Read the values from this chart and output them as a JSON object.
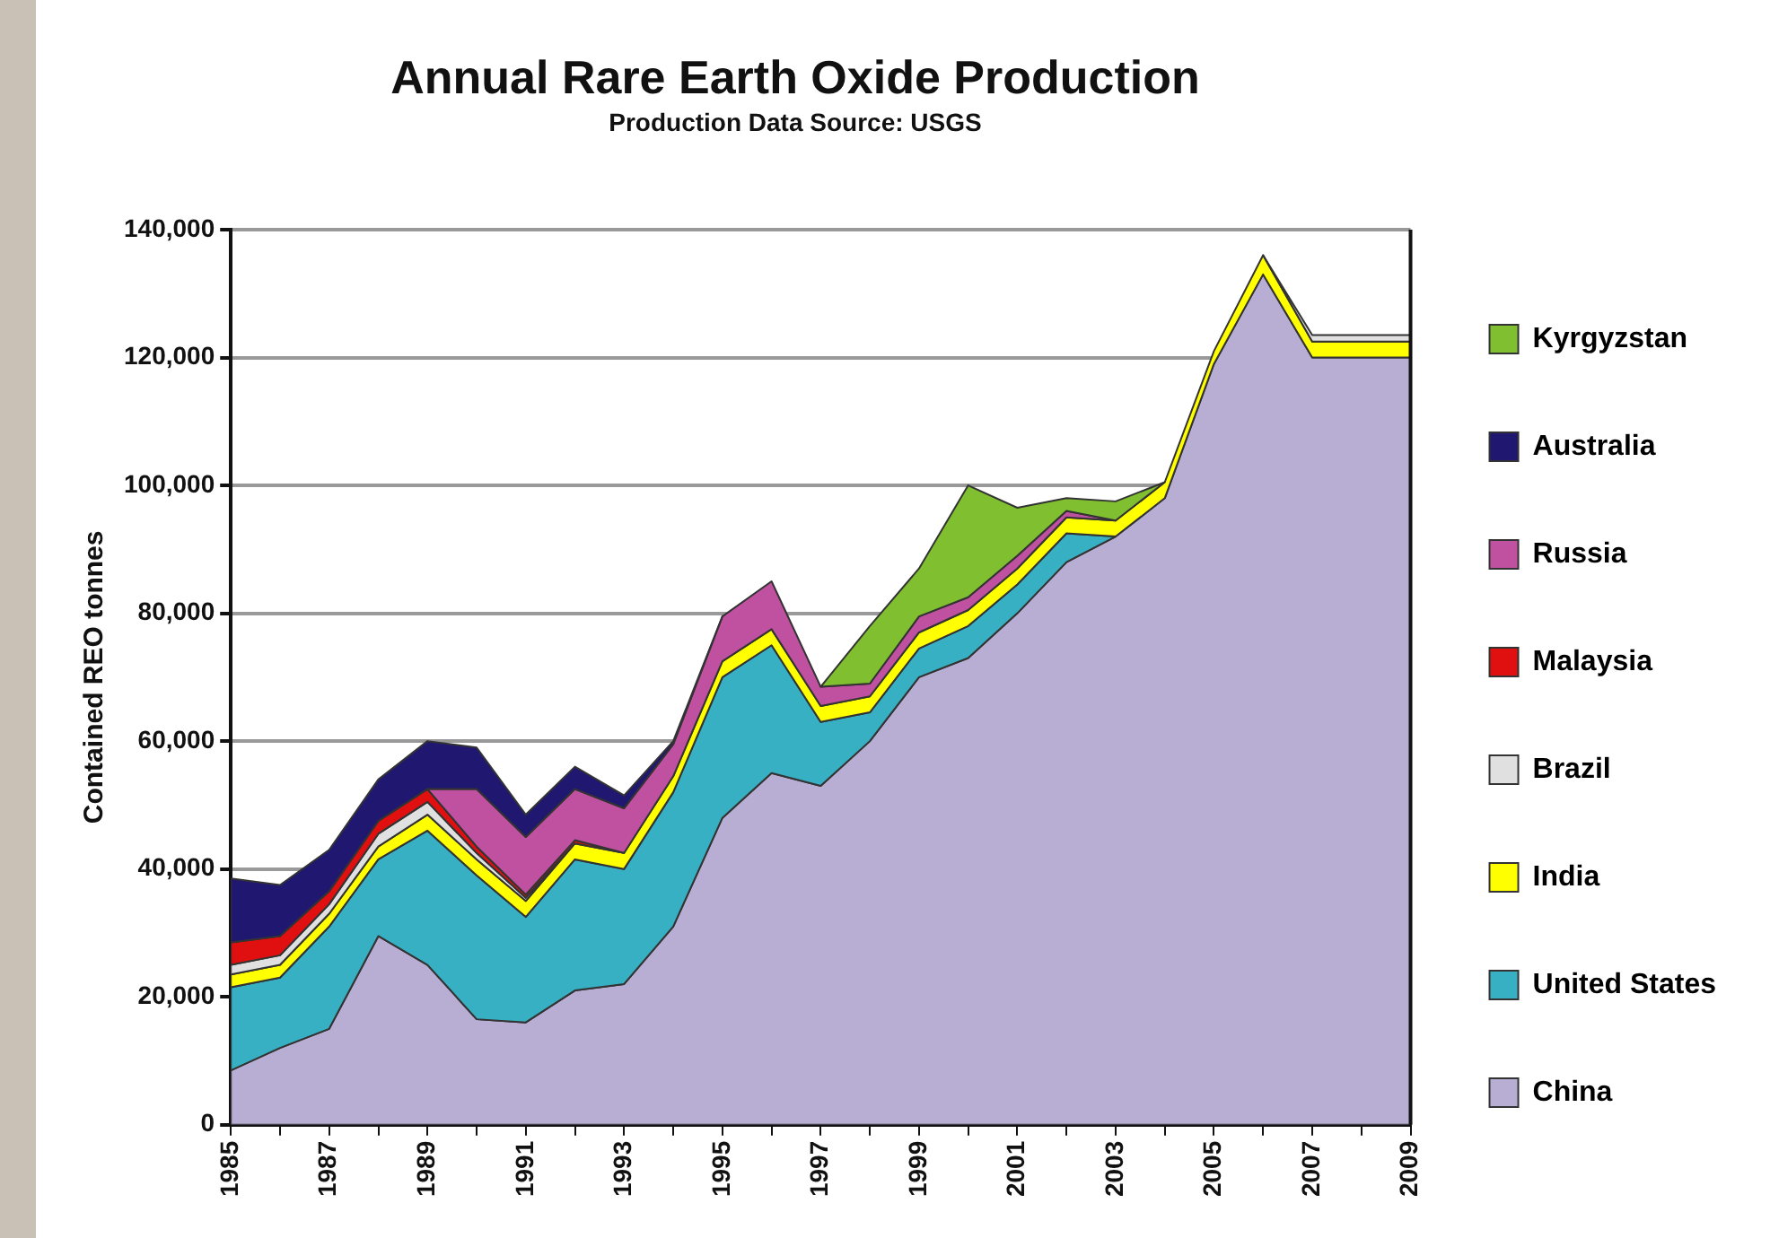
{
  "chart_data": {
    "type": "area",
    "title": "Annual Rare Earth Oxide Production",
    "subtitle": "Production Data Source:  USGS",
    "ylabel": "Contained REO tonnes",
    "stacked": true,
    "x": [
      1985,
      1986,
      1987,
      1988,
      1989,
      1990,
      1991,
      1992,
      1993,
      1994,
      1995,
      1996,
      1997,
      1998,
      1999,
      2000,
      2001,
      2002,
      2003,
      2004,
      2005,
      2006,
      2007,
      2008,
      2009
    ],
    "series": [
      {
        "name": "China",
        "color": "#b8aed4",
        "values": [
          8500,
          12000,
          15000,
          29500,
          25000,
          16500,
          16000,
          21000,
          22000,
          31000,
          48000,
          55000,
          53000,
          60000,
          70000,
          73000,
          80000,
          88000,
          92000,
          98000,
          119000,
          133000,
          120000,
          120000,
          120000
        ]
      },
      {
        "name": "United States",
        "color": "#38b0c4",
        "values": [
          13000,
          11000,
          16000,
          12000,
          21000,
          22500,
          16500,
          20500,
          18000,
          21000,
          22000,
          20000,
          10000,
          4500,
          4500,
          5000,
          4500,
          4500,
          0,
          null,
          null,
          null,
          null,
          null,
          null
        ]
      },
      {
        "name": "India",
        "color": "#ffff00",
        "values": [
          2000,
          2000,
          2000,
          2000,
          2500,
          2500,
          2500,
          2500,
          2500,
          2500,
          2500,
          2500,
          2500,
          2500,
          2500,
          2500,
          2500,
          2500,
          2500,
          2500,
          2000,
          3000,
          2500,
          2500,
          2500
        ]
      },
      {
        "name": "Brazil",
        "color": "#e0e0e0",
        "values": [
          1500,
          1500,
          1500,
          2000,
          2000,
          1000,
          500,
          0,
          null,
          null,
          null,
          null,
          null,
          null,
          null,
          null,
          null,
          null,
          null,
          null,
          null,
          0,
          1000,
          1000,
          1000
        ]
      },
      {
        "name": "Malaysia",
        "color": "#e01010",
        "values": [
          3500,
          3000,
          2000,
          2000,
          2000,
          1000,
          500,
          500,
          0,
          null,
          null,
          null,
          null,
          null,
          null,
          null,
          null,
          null,
          null,
          null,
          null,
          null,
          null,
          null,
          null
        ]
      },
      {
        "name": "Russia",
        "color": "#c050a0",
        "values": [
          null,
          null,
          null,
          null,
          0,
          9000,
          9000,
          8000,
          7000,
          5000,
          7000,
          7500,
          3000,
          2000,
          2500,
          2000,
          2000,
          1000,
          0,
          null,
          null,
          null,
          null,
          null,
          null
        ]
      },
      {
        "name": "Australia",
        "color": "#201870",
        "values": [
          10000,
          8000,
          6500,
          6500,
          7500,
          6500,
          3500,
          3500,
          2000,
          500,
          0,
          null,
          null,
          null,
          null,
          null,
          null,
          null,
          null,
          null,
          null,
          null,
          null,
          null,
          null
        ]
      },
      {
        "name": "Kyrgyzstan",
        "color": "#80c030",
        "values": [
          null,
          null,
          null,
          null,
          null,
          null,
          null,
          null,
          null,
          null,
          null,
          null,
          0,
          9000,
          7500,
          17500,
          7500,
          2000,
          3000,
          0,
          null,
          null,
          null,
          null,
          null
        ]
      }
    ],
    "xlim": [
      1985,
      2009
    ],
    "xticks": [
      1985,
      {
        "value": 1986,
        "label": null
      },
      1987,
      {
        "value": 1988,
        "label": null
      },
      1989,
      {
        "value": 1990,
        "label": null
      },
      1991,
      {
        "value": 1992,
        "label": null
      },
      1993,
      {
        "value": 1994,
        "label": null
      },
      1995,
      {
        "value": 1996,
        "label": null
      },
      1997,
      {
        "value": 1998,
        "label": null
      },
      1999,
      {
        "value": 2000,
        "label": null
      },
      2001,
      {
        "value": 2002,
        "label": null
      },
      2003,
      {
        "value": 2004,
        "label": null
      },
      2005,
      {
        "value": 2006,
        "label": null
      },
      2007,
      {
        "value": 2008,
        "label": null
      },
      2009
    ],
    "ylim": [
      0,
      140000
    ],
    "yticks": [
      {
        "value": 0,
        "label": "0"
      },
      {
        "value": 20000,
        "label": "20,000"
      },
      {
        "value": 40000,
        "label": "40,000"
      },
      {
        "value": 60000,
        "label": "60,000"
      },
      {
        "value": 80000,
        "label": "80,000"
      },
      {
        "value": 100000,
        "label": "100,000"
      },
      {
        "value": 120000,
        "label": "120,000"
      },
      {
        "value": 140000,
        "label": "140,000"
      }
    ],
    "grid": "y",
    "legend": "right"
  }
}
